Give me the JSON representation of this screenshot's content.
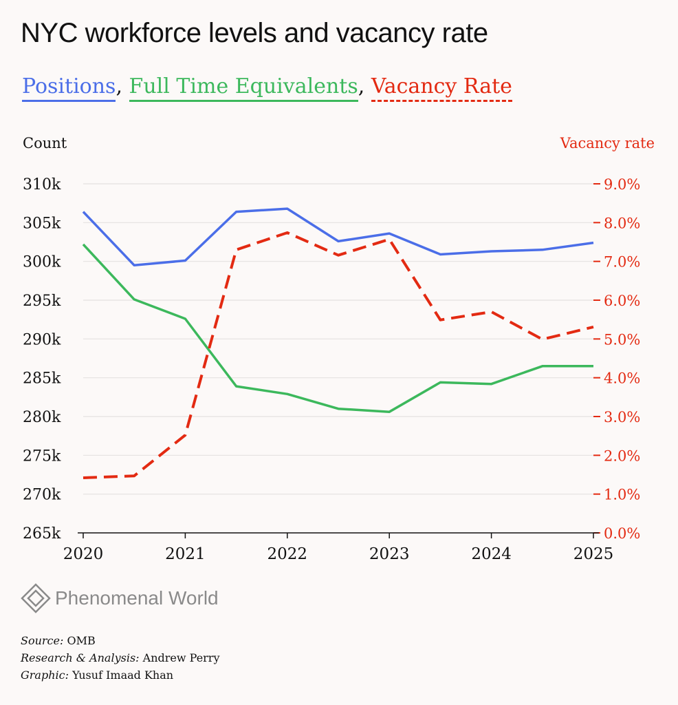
{
  "title": "NYC workforce levels and vacancy rate",
  "legend": [
    {
      "label": "Positions",
      "color": "#4b6ee8",
      "style": "solid"
    },
    {
      "label": "Full Time Equivalents",
      "color": "#3cb85c",
      "style": "solid"
    },
    {
      "label": "Vacancy Rate",
      "color": "#e32a12",
      "style": "dashed"
    }
  ],
  "legend_sep": ",",
  "chart_data": {
    "type": "line",
    "title": "NYC workforce levels and vacancy rate",
    "ylabel": "Count",
    "y2label": "Vacancy rate",
    "x": [
      2020,
      2020.5,
      2021,
      2021.5,
      2022,
      2022.5,
      2023,
      2023.5,
      2024,
      2024.5,
      2025
    ],
    "xlim": [
      2020,
      2025
    ],
    "xticks": [
      "2020",
      "2021",
      "2022",
      "2023",
      "2024",
      "2025"
    ],
    "ylim": [
      265000,
      310000
    ],
    "yticks": [
      "310k",
      "305k",
      "300k",
      "295k",
      "290k",
      "285k",
      "280k",
      "275k",
      "270k",
      "265k"
    ],
    "y2lim": [
      0,
      9
    ],
    "y2ticks": [
      "9.0%",
      "8.0%",
      "7.0%",
      "6.0%",
      "5.0%",
      "4.0%",
      "3.0%",
      "2.0%",
      "1.0%",
      "0.0%"
    ],
    "grid": true,
    "series": [
      {
        "name": "Positions",
        "axis": "left",
        "color": "#4b6ee8",
        "values": [
          306400,
          299500,
          300100,
          306400,
          306800,
          302600,
          303600,
          300900,
          301300,
          301500,
          302400
        ]
      },
      {
        "name": "Full Time Equivalents",
        "axis": "left",
        "color": "#3cb85c",
        "values": [
          302200,
          295100,
          292600,
          283900,
          282900,
          281000,
          280600,
          284400,
          284200,
          286500,
          286500
        ]
      },
      {
        "name": "Vacancy Rate",
        "axis": "right",
        "color": "#e32a12",
        "dashed": true,
        "values": [
          1.42,
          1.47,
          2.52,
          7.3,
          7.74,
          7.16,
          7.57,
          5.49,
          5.7,
          4.99,
          5.31
        ]
      }
    ]
  },
  "logo": "Phenomenal World",
  "credits": [
    {
      "label": "Source:",
      "value": "OMB"
    },
    {
      "label": "Research & Analysis:",
      "value": "Andrew Perry"
    },
    {
      "label": "Graphic:",
      "value": "Yusuf Imaad Khan"
    }
  ]
}
